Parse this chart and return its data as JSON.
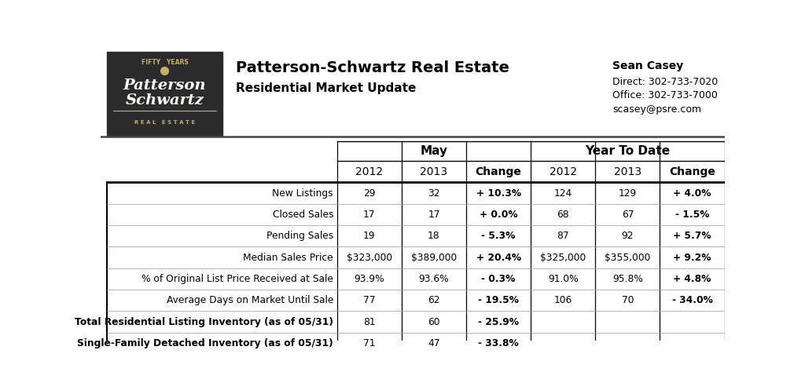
{
  "title1": "Patterson-Schwartz Real Estate",
  "title2": "Residential Market Update",
  "contact_name": "Sean Casey",
  "contact_line1": "Direct: 302-733-7020",
  "contact_line2": "Office: 302-733-7000",
  "contact_line3": "scasey@psre.com",
  "section_headers": [
    "May",
    "Year To Date"
  ],
  "col_headers": [
    "2012",
    "2013",
    "Change",
    "2012",
    "2013",
    "Change"
  ],
  "row_labels": [
    "New Listings",
    "Closed Sales",
    "Pending Sales",
    "Median Sales Price",
    "% of Original List Price Received at Sale",
    "Average Days on Market Until Sale",
    "Total Residential Listing Inventory (as of 05/31)",
    "Single-Family Detached Inventory (as of 05/31)"
  ],
  "table_data": [
    [
      "29",
      "32",
      "+ 10.3%",
      "124",
      "129",
      "+ 4.0%"
    ],
    [
      "17",
      "17",
      "+ 0.0%",
      "68",
      "67",
      "- 1.5%"
    ],
    [
      "19",
      "18",
      "- 5.3%",
      "87",
      "92",
      "+ 5.7%"
    ],
    [
      "$323,000",
      "$389,000",
      "+ 20.4%",
      "$325,000",
      "$355,000",
      "+ 9.2%"
    ],
    [
      "93.9%",
      "93.6%",
      "- 0.3%",
      "91.0%",
      "95.8%",
      "+ 4.8%"
    ],
    [
      "77",
      "62",
      "- 19.5%",
      "106",
      "70",
      "- 34.0%"
    ],
    [
      "81",
      "60",
      "- 25.9%",
      "",
      "",
      ""
    ],
    [
      "71",
      "47",
      "- 33.8%",
      "",
      "",
      ""
    ]
  ],
  "row_bold": [
    false,
    false,
    false,
    false,
    false,
    false,
    true,
    true
  ],
  "bg_color": "#ffffff",
  "text_color": "#000000",
  "logo_bg": "#2b2b2b",
  "logo_text_color": "#ffffff",
  "logo_accent_color": "#c8b060"
}
